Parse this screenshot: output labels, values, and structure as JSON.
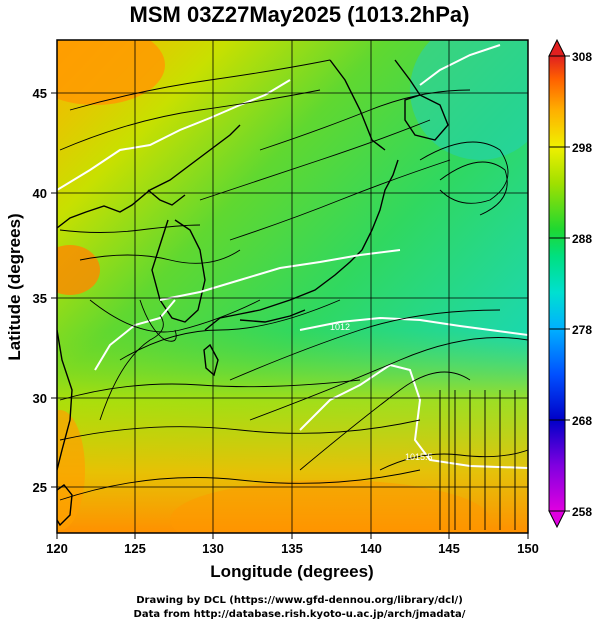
{
  "title": "MSM 03Z27May2025 (1013.2hPa)",
  "axes": {
    "xlabel": "Longitude (degrees)",
    "ylabel": "Latitude  (degrees)",
    "xlim": [
      120,
      150
    ],
    "ylim": [
      22.5,
      47.6
    ],
    "xticks": [
      "120",
      "125",
      "130",
      "135",
      "140",
      "145",
      "150"
    ],
    "yticks": [
      "25",
      "30",
      "35",
      "40",
      "45"
    ]
  },
  "colorbar": {
    "ticks": [
      "308",
      "298",
      "288",
      "278",
      "268",
      "258"
    ],
    "range": [
      258,
      308
    ],
    "colors": [
      "#d400d4",
      "#7a00e0",
      "#0000d0",
      "#0060ff",
      "#00b8ff",
      "#00e0c8",
      "#00e070",
      "#20d020",
      "#a0e000",
      "#f0f000",
      "#ffb000",
      "#ff6000",
      "#e02020"
    ]
  },
  "contour_labels": [
    "1012",
    "1015.5"
  ],
  "credits": {
    "line1": "Drawing by DCL (https://www.gfd-dennou.org/library/dcl/)",
    "line2": "Data from http://database.rish.kyoto-u.ac.jp/arch/jmadata/"
  },
  "colors": {
    "frame": "#000000",
    "isobar": "#ffffff",
    "coast": "#000000"
  }
}
